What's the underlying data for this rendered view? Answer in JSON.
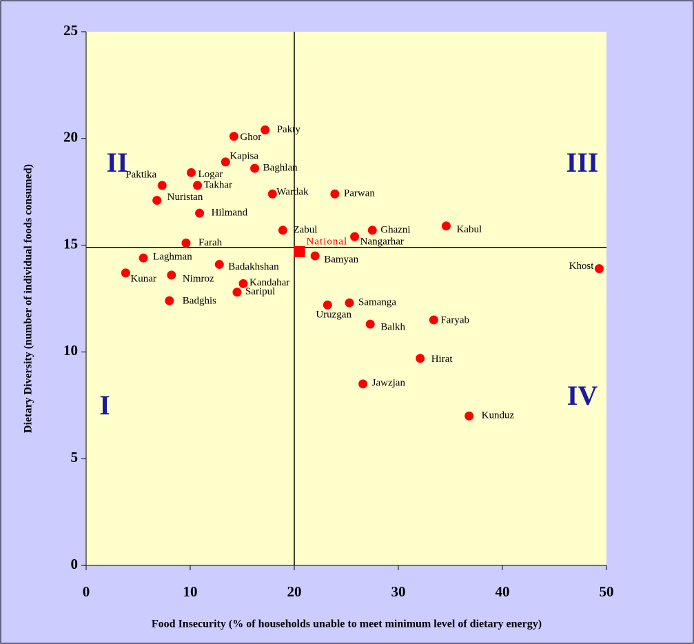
{
  "chart_data": {
    "type": "scatter",
    "x_label": "Food Insecurity (% of households unable to meet minimum level of dietary energy)",
    "y_label": "Dietary Diversity (number of individual foods consumed)",
    "xlim": [
      0,
      50
    ],
    "xticks": [
      0,
      10,
      20,
      30,
      40,
      50
    ],
    "ylim": [
      0,
      25
    ],
    "yticks": [
      0,
      5,
      10,
      15,
      20,
      25
    ],
    "color": "#ff0000",
    "point_labels": [
      "Ghor",
      "Pakty",
      "Kapisa",
      "Baghlan",
      "Logar",
      "Paktika",
      "Takhar",
      "Wardak",
      "Parwan",
      "Nuristan",
      "Hilmand",
      "Zabul",
      "Ghazni",
      "Kabul",
      "Nangarhar",
      "Farah",
      "Bamyan",
      "Laghman",
      "Badakhshan",
      "Khost",
      "Kunar",
      "Nimroz",
      "Kandahar",
      "Saripul",
      "Badghis",
      "Uruzgan",
      "Samanga",
      "Faryab",
      "Balkh",
      "Hirat",
      "Jawzjan",
      "Kunduz"
    ],
    "x": [
      14.2,
      17.2,
      13.4,
      16.2,
      10.1,
      7.3,
      10.7,
      17.9,
      23.9,
      6.8,
      10.9,
      18.9,
      27.5,
      34.6,
      25.8,
      9.6,
      22.0,
      5.5,
      12.8,
      49.3,
      3.8,
      8.2,
      15.1,
      14.5,
      8.0,
      23.2,
      25.3,
      33.4,
      27.3,
      32.1,
      26.6,
      36.8
    ],
    "y": [
      20.1,
      20.4,
      18.9,
      18.6,
      18.4,
      17.8,
      17.8,
      17.4,
      17.4,
      17.1,
      16.5,
      15.7,
      15.7,
      15.9,
      15.4,
      15.1,
      14.5,
      14.4,
      14.1,
      13.9,
      13.7,
      13.6,
      13.2,
      12.8,
      12.4,
      12.2,
      12.3,
      11.5,
      11.3,
      9.7,
      8.5,
      7.0
    ],
    "highlight": {
      "label": "National",
      "x": 20.5,
      "y": 14.7,
      "color": "#ff0000"
    },
    "reference_lines": {
      "x": 20,
      "y": 14.9
    },
    "quadrant_labels": [
      "II",
      "III",
      "I",
      "IV"
    ]
  }
}
